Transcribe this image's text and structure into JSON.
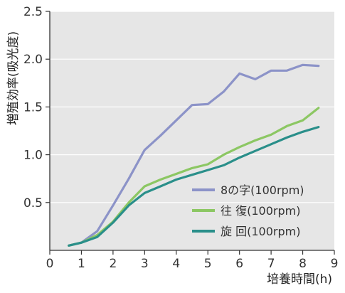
{
  "chart_data": {
    "type": "line",
    "xlabel": "培養時間(h)",
    "ylabel": "増殖効率(吸光度)",
    "xlim": [
      0,
      9
    ],
    "ylim": [
      0,
      2.5
    ],
    "xticks": [
      "0",
      "1",
      "2",
      "3",
      "4",
      "5",
      "6",
      "7",
      "8",
      "9"
    ],
    "yticks": [
      "0.5",
      "1.0",
      "1.5",
      "2.0",
      "2.5"
    ],
    "grid": "horizontal",
    "plot_background": "#e6e6e6",
    "legend_position": "bottom-right",
    "series": [
      {
        "name": "8の字(100rpm)",
        "color": "#8c93c8",
        "x": [
          0.6,
          1.0,
          1.5,
          2.0,
          2.5,
          3.0,
          3.5,
          4.0,
          4.5,
          5.0,
          5.5,
          6.0,
          6.5,
          7.0,
          7.5,
          8.0,
          8.5
        ],
        "y": [
          0.05,
          0.08,
          0.2,
          0.47,
          0.75,
          1.05,
          1.2,
          1.36,
          1.52,
          1.53,
          1.66,
          1.85,
          1.79,
          1.88,
          1.88,
          1.94,
          1.93
        ]
      },
      {
        "name": "往 復(100rpm)",
        "color": "#8cc763",
        "x": [
          0.6,
          1.0,
          1.5,
          2.0,
          2.5,
          3.0,
          3.5,
          4.0,
          4.5,
          5.0,
          5.5,
          6.0,
          6.5,
          7.0,
          7.5,
          8.0,
          8.5
        ],
        "y": [
          0.05,
          0.08,
          0.16,
          0.3,
          0.5,
          0.67,
          0.74,
          0.8,
          0.86,
          0.9,
          1.0,
          1.08,
          1.15,
          1.21,
          1.3,
          1.36,
          1.49
        ]
      },
      {
        "name": "旋 回(100rpm)",
        "color": "#2a8f8a",
        "x": [
          0.6,
          1.0,
          1.5,
          2.0,
          2.5,
          3.0,
          3.5,
          4.0,
          4.5,
          5.0,
          5.5,
          6.0,
          6.5,
          7.0,
          7.5,
          8.0,
          8.5
        ],
        "y": [
          0.05,
          0.08,
          0.14,
          0.29,
          0.47,
          0.6,
          0.67,
          0.74,
          0.79,
          0.84,
          0.89,
          0.97,
          1.04,
          1.11,
          1.18,
          1.24,
          1.29
        ]
      }
    ]
  }
}
